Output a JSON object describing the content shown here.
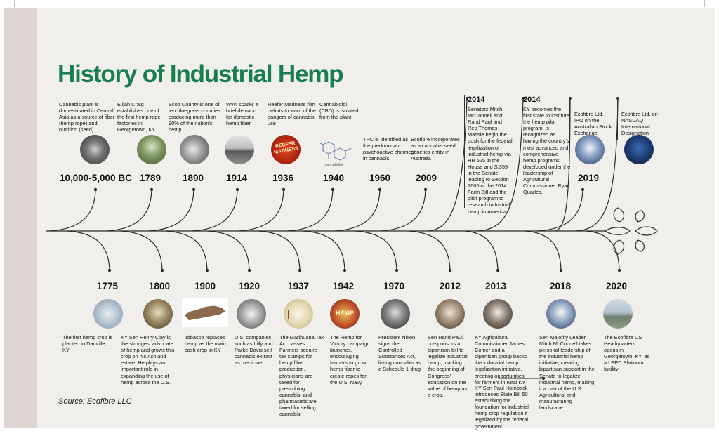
{
  "title": "History of Industrial Hemp",
  "source": "Source: Ecofibre LLC",
  "colors": {
    "title_green": "#1a7d4e",
    "background": "#f0efec",
    "spine": "#ddd6d2"
  },
  "above": [
    {
      "year": "10,000-5,000 BC",
      "text": "Cannabis plant is domesticated in Central Asia as a source of fiber (hemp rope) and nutrition (seed)",
      "icon": "cannabis-leaves-photo"
    },
    {
      "year": "1789",
      "text": "Elijah Craig establishes one of the first hemp rope factories in Georgetown, KY",
      "icon": "hemp-field-photo"
    },
    {
      "year": "1890",
      "text": "Scott County is one of ten bluegrass counties producing more than 90% of the nation's hemp",
      "icon": "harvest-workers-photo"
    },
    {
      "year": "1914",
      "text": "WWI sparks a brief demand for domestic hemp fiber",
      "icon": "ww1-field-photo"
    },
    {
      "year": "1936",
      "text": "Reefer Madness film debuts to warn of the dangers of cannabis use",
      "icon": "reefer-madness-poster",
      "poster": "REEFER MADNESS"
    },
    {
      "year": "1940",
      "text": "Cannabidiol (CBD) is isolated from the plant",
      "icon": "cbd-molecule",
      "caption": "cannabidiol"
    },
    {
      "year": "1960",
      "text": "THC is identified as the predominant psychoactive chemical in cannabis"
    },
    {
      "year": "2009",
      "text": "Ecofibre incorporates as a cannabis seed genetics entity in Australia"
    },
    {
      "year": "2014",
      "text": "Senators Mitch McConnell and Rand Paul and Rep Thomas Massie begin the push for the federal legalization of industrial hemp via HR 525 in the House and S.359 in the Senate, leading to Section 7606 of the 2014 Farm Bill and the pilot program to research industrial hemp in America"
    },
    {
      "year": "2014",
      "text": "KY becomes the first state to institute the hemp pilot program, is recognized as having the country's most advanced and comprehensive hemp programs developed under the leadership of Agricultural Commissioner Ryan Quarles."
    },
    {
      "year": "2019",
      "text": "Ecofibre Ltd. IPO on the Australian Stock Exchange",
      "icon": "asx-listing-photo"
    },
    {
      "year": "",
      "text": "Ecofibre Ltd. on NASDAQ International Designation",
      "icon": "nasdaq-photo"
    }
  ],
  "below": [
    {
      "year": "1775",
      "text": "The first hemp crop is planted in Danville, KY",
      "icon": "danville-map"
    },
    {
      "year": "1800",
      "text": "KY Sen Henry Clay is the strongest advocate of hemp and grows this crop on his Ashland estate. He plays an important role in expanding the use of hemp across the U.S.",
      "icon": "henry-clay-portrait"
    },
    {
      "year": "1900",
      "text": "Tobacco replaces hemp as the main cash crop in KY",
      "icon": "kentucky-map"
    },
    {
      "year": "1920",
      "text": "U.S. companies such as Lilly and Parke Davis sell cannabis extract as medicine",
      "icon": "medicine-bottles-photo"
    },
    {
      "year": "1937",
      "text": "The Marihuana Tax Act passes. Farmers acquire tax stamps for hemp fiber production, physicians are taxed for prescribing cannabis, and pharmacists are taxed for selling cannabis.",
      "icon": "tax-stamp"
    },
    {
      "year": "1942",
      "text": "The Hemp for Victory campaign launches, encouraging farmers to grow hemp fiber to create ropes for the U.S. Navy",
      "icon": "hemp-for-victory-poster",
      "poster": "HEMP"
    },
    {
      "year": "1970",
      "text": "President Nixon signs the Controlled Substances Act, listing cannabis as a Schedule 1 drug",
      "icon": "nixon-photo"
    },
    {
      "year": "2012",
      "text": "Sen Rand Paul, co-sponsors a bipartisan bill to legalize industrial hemp, marking the beginning of Congress' education on the value of hemp as a crop.",
      "icon": "rand-paul-photo"
    },
    {
      "year": "2013",
      "text": "KY Agricultural Commissioner James Comer and a bipartisan group backs the industrial hemp legalization initiative, creating opportunities for farmers in rural KY",
      "text2": "KY Sen Paul Hornback introduces State Bill 50 establishing the foundation for industrial hemp crop regulation if legalized by the federal government",
      "icon": "comer-group-photo"
    },
    {
      "year": "2018",
      "text": "Sen Majority Leader Mitch McConnell takes personal leadership of the industrial hemp initiative, creating bipartisan support in the Senate to legalize industrial hemp, making it a part of the U.S. Agricultural and manufacturing landscape",
      "icon": "mcconnell-photo"
    },
    {
      "year": "2020",
      "text": "The Ecofibre US Headquarters opens in Georgetown, KY, as a LEED Platinum facility",
      "icon": "headquarters-photo"
    }
  ]
}
